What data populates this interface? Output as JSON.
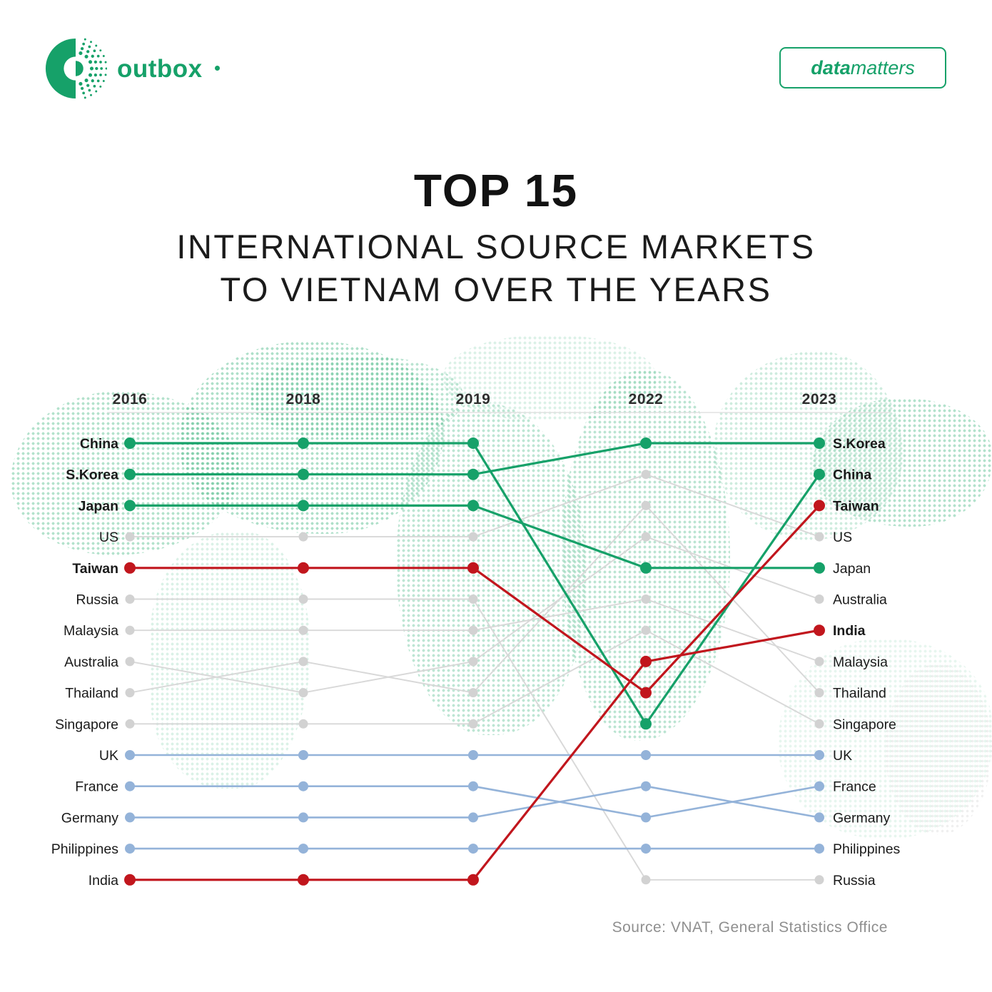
{
  "header": {
    "logo_text": "outbox",
    "badge_bold": "data",
    "badge_regular": "matters"
  },
  "title": {
    "line1": "TOP 15",
    "line2": "INTERNATIONAL SOURCE MARKETS",
    "line3": "TO VIETNAM OVER THE YEARS"
  },
  "source": "Source: VNAT, General Statistics Office",
  "chart_data": {
    "type": "line",
    "subtype": "bump-rank-chart",
    "years": [
      "2016",
      "2018",
      "2019",
      "2022",
      "2023"
    ],
    "rank_range": [
      1,
      15
    ],
    "legend_position": "none",
    "grid": false,
    "series": [
      {
        "name": "China",
        "color_group": "green",
        "ranks": [
          1,
          1,
          1,
          10,
          2
        ],
        "left_bold": true,
        "right_bold": true
      },
      {
        "name": "S.Korea",
        "color_group": "green",
        "ranks": [
          2,
          2,
          2,
          1,
          1
        ],
        "left_bold": true,
        "right_bold": true
      },
      {
        "name": "Japan",
        "color_group": "green",
        "ranks": [
          3,
          3,
          3,
          5,
          5
        ],
        "left_bold": true,
        "right_bold": false
      },
      {
        "name": "US",
        "color_group": "gray",
        "ranks": [
          4,
          4,
          4,
          2,
          4
        ],
        "left_bold": false,
        "right_bold": false
      },
      {
        "name": "Taiwan",
        "color_group": "red",
        "ranks": [
          5,
          5,
          5,
          9,
          3
        ],
        "left_bold": true,
        "right_bold": true
      },
      {
        "name": "Russia",
        "color_group": "gray",
        "ranks": [
          6,
          6,
          6,
          15,
          15
        ],
        "left_bold": false,
        "right_bold": false
      },
      {
        "name": "Malaysia",
        "color_group": "gray",
        "ranks": [
          7,
          7,
          7,
          6,
          8
        ],
        "left_bold": false,
        "right_bold": false
      },
      {
        "name": "Australia",
        "color_group": "gray",
        "ranks": [
          8,
          9,
          8,
          4,
          6
        ],
        "left_bold": false,
        "right_bold": false
      },
      {
        "name": "Thailand",
        "color_group": "gray",
        "ranks": [
          9,
          8,
          9,
          3,
          9
        ],
        "left_bold": false,
        "right_bold": false
      },
      {
        "name": "Singapore",
        "color_group": "gray",
        "ranks": [
          10,
          10,
          10,
          7,
          10
        ],
        "left_bold": false,
        "right_bold": false
      },
      {
        "name": "UK",
        "color_group": "blue",
        "ranks": [
          11,
          11,
          11,
          11,
          11
        ],
        "left_bold": false,
        "right_bold": false
      },
      {
        "name": "France",
        "color_group": "blue",
        "ranks": [
          12,
          12,
          12,
          13,
          12
        ],
        "left_bold": false,
        "right_bold": false
      },
      {
        "name": "Germany",
        "color_group": "blue",
        "ranks": [
          13,
          13,
          13,
          12,
          13
        ],
        "left_bold": false,
        "right_bold": false
      },
      {
        "name": "Philippines",
        "color_group": "blue",
        "ranks": [
          14,
          14,
          14,
          14,
          14
        ],
        "left_bold": false,
        "right_bold": false
      },
      {
        "name": "India",
        "color_group": "red",
        "ranks": [
          15,
          15,
          15,
          8,
          7
        ],
        "left_bold": false,
        "right_bold": true
      }
    ],
    "colors": {
      "green": "#16a169",
      "red": "#c1161d",
      "blue": "#94b3d9",
      "gray": "#d8d8d8",
      "gray_dot": "#d2d2d2",
      "axis_line": "#e2e2e2",
      "year_text": "#2e2e2e",
      "label_text": "#1a1a1a"
    }
  }
}
